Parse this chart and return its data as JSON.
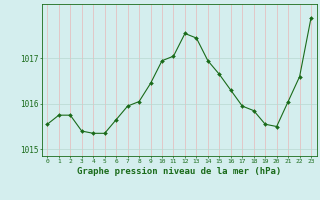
{
  "x": [
    0,
    1,
    2,
    3,
    4,
    5,
    6,
    7,
    8,
    9,
    10,
    11,
    12,
    13,
    14,
    15,
    16,
    17,
    18,
    19,
    20,
    21,
    22,
    23
  ],
  "y": [
    1015.55,
    1015.75,
    1015.75,
    1015.4,
    1015.35,
    1015.35,
    1015.65,
    1015.95,
    1016.05,
    1016.45,
    1016.95,
    1017.05,
    1017.55,
    1017.45,
    1016.95,
    1016.65,
    1016.3,
    1015.95,
    1015.85,
    1015.55,
    1015.5,
    1016.05,
    1016.6,
    1017.9
  ],
  "line_color": "#1a6b1a",
  "marker": "D",
  "marker_size": 2.0,
  "bg_color": "#d4eeee",
  "vgrid_color": "#e8b8b8",
  "hgrid_color": "#b8d8d0",
  "axis_color": "#1a6b1a",
  "xlabel": "Graphe pression niveau de la mer (hPa)",
  "xlabel_fontsize": 6.5,
  "yticks": [
    1015,
    1016,
    1017
  ],
  "xticks": [
    0,
    1,
    2,
    3,
    4,
    5,
    6,
    7,
    8,
    9,
    10,
    11,
    12,
    13,
    14,
    15,
    16,
    17,
    18,
    19,
    20,
    21,
    22,
    23
  ],
  "ylim": [
    1014.85,
    1018.2
  ],
  "xlim": [
    -0.5,
    23.5
  ]
}
